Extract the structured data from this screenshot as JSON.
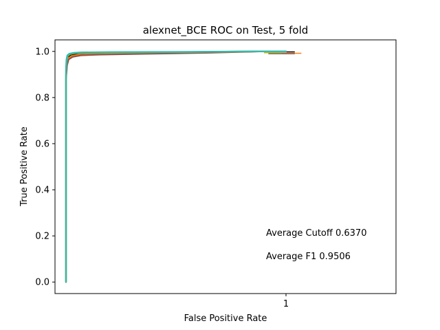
{
  "chart_data": {
    "type": "line",
    "title": "alexnet_BCE ROC on Test, 5 fold",
    "xlabel": "False Positive Rate",
    "ylabel": "True Positive Rate",
    "xlim": [
      -0.05,
      1.5
    ],
    "ylim": [
      -0.05,
      1.05
    ],
    "x_ticks": [
      1
    ],
    "x_tick_labels": [
      "1"
    ],
    "y_ticks": [
      0.0,
      0.2,
      0.4,
      0.6,
      0.8,
      1.0
    ],
    "y_tick_labels": [
      "0.0",
      "0.2",
      "0.4",
      "0.6",
      "0.8",
      "1.0"
    ],
    "grid": false,
    "annotations": [
      "Average Cutoff 0.6370",
      "Average F1 0.9506"
    ],
    "series": [
      {
        "color": "#000000",
        "x": [
          0.0,
          0.0,
          0.0,
          0.003,
          0.008,
          0.02,
          0.05,
          0.1,
          0.3,
          0.6,
          0.9,
          1.0
        ],
        "y": [
          0.0,
          0.82,
          0.9,
          0.95,
          0.975,
          0.985,
          0.99,
          0.991,
          0.992,
          0.996,
          1.0,
          1.0
        ],
        "marker": {
          "x": [
            0.92,
            1.04
          ],
          "y": 0.998
        }
      },
      {
        "color": "#ff7f0e",
        "x": [
          0.0,
          0.0,
          0.0,
          0.004,
          0.01,
          0.025,
          0.06,
          0.12,
          0.3,
          0.6,
          0.9,
          1.0
        ],
        "y": [
          0.0,
          0.8,
          0.89,
          0.945,
          0.97,
          0.98,
          0.986,
          0.988,
          0.99,
          0.995,
          1.0,
          1.0
        ],
        "marker": {
          "x": [
            0.92,
            1.07
          ],
          "y": 0.992
        }
      },
      {
        "color": "#8c564b",
        "x": [
          0.0,
          0.0,
          0.0,
          0.005,
          0.012,
          0.03,
          0.07,
          0.15,
          0.35,
          0.65,
          0.9,
          1.0
        ],
        "y": [
          0.0,
          0.79,
          0.88,
          0.94,
          0.965,
          0.976,
          0.983,
          0.986,
          0.989,
          0.994,
          1.0,
          1.0
        ],
        "marker": {
          "x": [
            0.92,
            1.04
          ],
          "y": 0.99
        }
      },
      {
        "color": "#bcbd22",
        "x": [
          0.0,
          0.0,
          0.0,
          0.003,
          0.008,
          0.018,
          0.04,
          0.08,
          0.25,
          0.55,
          0.85,
          1.0
        ],
        "y": [
          0.0,
          0.84,
          0.92,
          0.96,
          0.98,
          0.988,
          0.992,
          0.994,
          0.995,
          0.997,
          1.0,
          1.0
        ],
        "marker": {
          "x": [
            0.9,
            0.98
          ],
          "y": 0.994
        }
      },
      {
        "color": "#17becf",
        "x": [
          0.0,
          0.0,
          0.0,
          0.002,
          0.006,
          0.015,
          0.035,
          0.07,
          0.2,
          0.5,
          0.85,
          1.0
        ],
        "y": [
          0.0,
          0.85,
          0.93,
          0.965,
          0.983,
          0.99,
          0.994,
          0.996,
          0.997,
          0.998,
          1.0,
          1.0
        ],
        "marker": {
          "x": [
            0.92,
            1.0
          ],
          "y": 0.998
        }
      },
      {
        "color": "#3cb8a6",
        "x": [
          0.0,
          0.0,
          0.0,
          0.003,
          0.007,
          0.016,
          0.036,
          0.075,
          0.22,
          0.52,
          0.85,
          1.0
        ],
        "y": [
          0.0,
          0.83,
          0.92,
          0.96,
          0.981,
          0.989,
          0.993,
          0.995,
          0.996,
          0.997,
          1.0,
          1.0
        ]
      }
    ]
  }
}
